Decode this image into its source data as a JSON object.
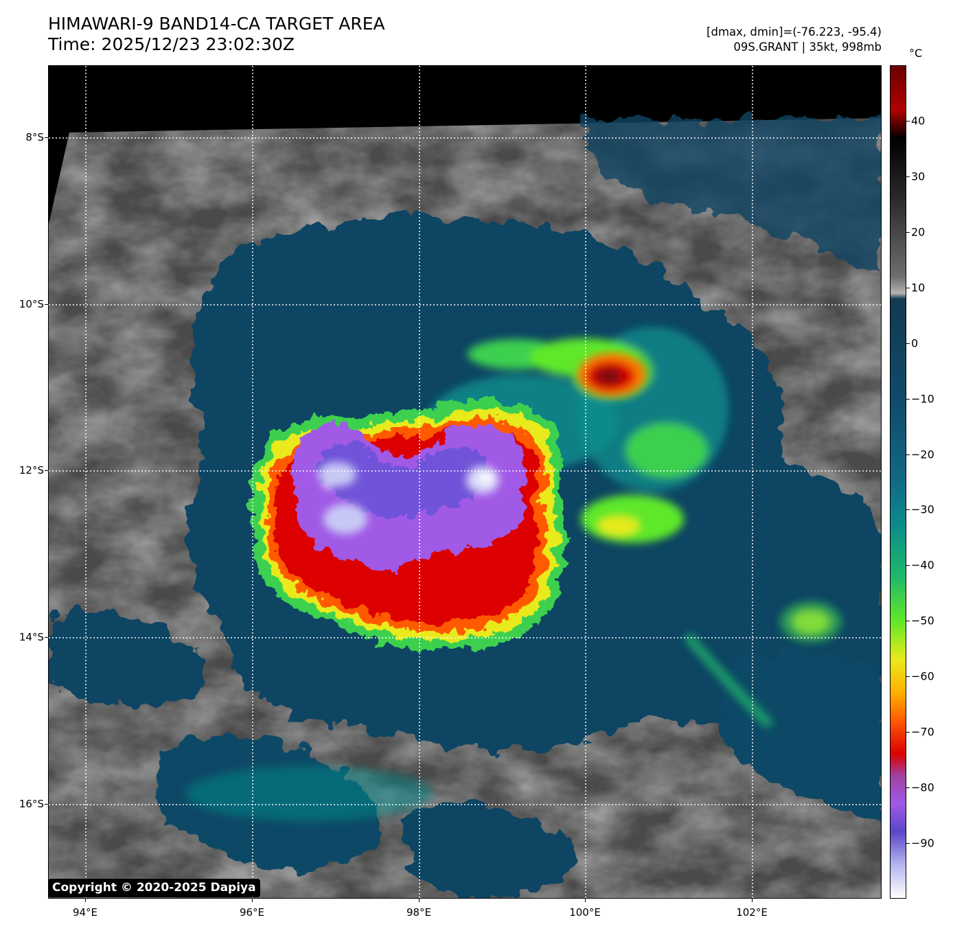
{
  "header": {
    "title_line1": "HIMAWARI-9 BAND14-CA TARGET AREA",
    "title_line2": "Time: 2025/12/23 23:02:30Z",
    "dmax_dmin": "[dmax, dmin]=(-76.223, -95.4)",
    "storm": "09S.GRANT | 35kt, 998mb"
  },
  "map": {
    "lat_labels": [
      "8°S",
      "10°S",
      "12°S",
      "14°S",
      "16°S"
    ],
    "lon_labels": [
      "94°E",
      "96°E",
      "98°E",
      "100°E",
      "102°E"
    ],
    "grid_style": "dotted-white",
    "copyright": "Copyright © 2020-2025 Dapiya"
  },
  "colorbar": {
    "unit": "°C",
    "tick_labels": [
      "40",
      "30",
      "20",
      "10",
      "0",
      "−10",
      "−20",
      "−30",
      "−40",
      "−50",
      "−60",
      "−70",
      "−80",
      "−90"
    ],
    "range": [
      -100,
      50
    ],
    "stops": [
      {
        "t": 50,
        "color": "#6a0000"
      },
      {
        "t": 42,
        "color": "#b00000"
      },
      {
        "t": 37,
        "color": "#000000"
      },
      {
        "t": 26,
        "color": "#2a2a2a"
      },
      {
        "t": 12,
        "color": "#6e6e6e"
      },
      {
        "t": 9,
        "color": "#b4b4b4"
      },
      {
        "t": 8,
        "color": "#123a52"
      },
      {
        "t": -10,
        "color": "#0f4a6a"
      },
      {
        "t": -25,
        "color": "#116a86"
      },
      {
        "t": -33,
        "color": "#0c8c8c"
      },
      {
        "t": -42,
        "color": "#1fb86a"
      },
      {
        "t": -50,
        "color": "#5fe82a"
      },
      {
        "t": -57,
        "color": "#e8ea1a"
      },
      {
        "t": -63,
        "color": "#ffb000"
      },
      {
        "t": -68,
        "color": "#ff5a00"
      },
      {
        "t": -74,
        "color": "#dc0000"
      },
      {
        "t": -78,
        "color": "#a040a0"
      },
      {
        "t": -83,
        "color": "#a05ae6"
      },
      {
        "t": -88,
        "color": "#5a46c8"
      },
      {
        "t": -94,
        "color": "#b4b4f0"
      },
      {
        "t": -100,
        "color": "#ffffff"
      }
    ]
  }
}
